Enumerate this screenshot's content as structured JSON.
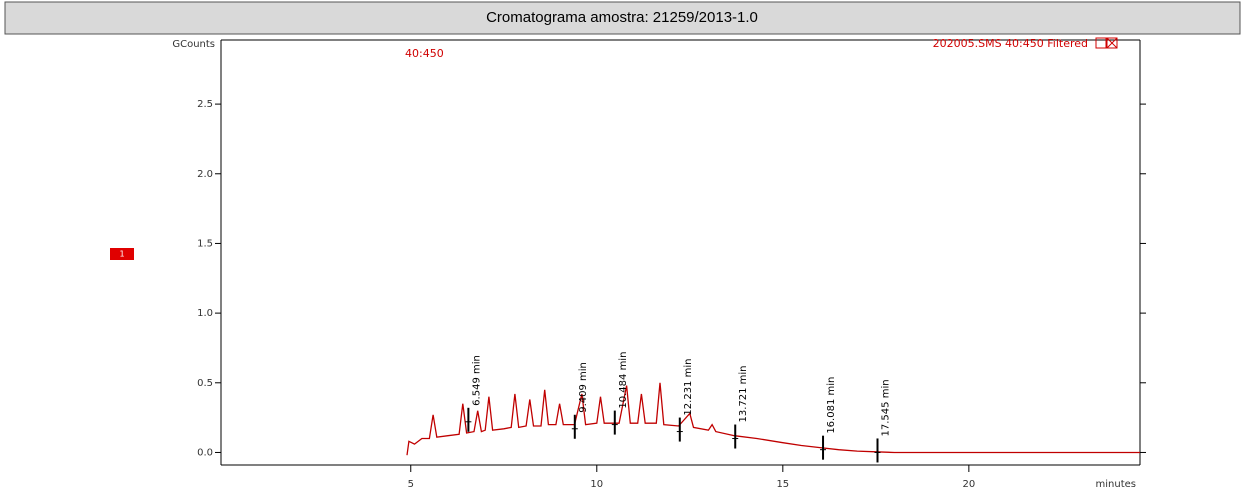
{
  "chart_data": {
    "type": "line",
    "title": "Cromatograma amostra: 21259/2013-1.0",
    "y_label": "GCounts",
    "x_label": "minutes",
    "annotation_left": "40:450",
    "annotation_right": "202005.SMS 40:450 Filtered",
    "trace_label": "1",
    "xlim": [
      -0.1,
      24.6
    ],
    "ylim": [
      -0.09,
      2.96
    ],
    "xticks": [
      5,
      10,
      15,
      20
    ],
    "yticks": [
      {
        "value": 0,
        "label": "0.0"
      },
      0.5,
      {
        "value": 1,
        "label": "1.0"
      },
      1.5,
      {
        "value": 2,
        "label": "2.0"
      },
      2.5
    ],
    "series": [
      {
        "color": "#c00000",
        "x": [
          4.9,
          4.95,
          5.1,
          5.3,
          5.5,
          5.6,
          5.7,
          6.0,
          6.3,
          6.4,
          6.5,
          6.7,
          6.8,
          6.9,
          7.0,
          7.1,
          7.2,
          7.5,
          7.7,
          7.8,
          7.9,
          8.1,
          8.2,
          8.3,
          8.5,
          8.6,
          8.7,
          8.9,
          9.0,
          9.1,
          9.4,
          9.6,
          9.7,
          10.0,
          10.1,
          10.2,
          10.6,
          10.8,
          10.9,
          11.1,
          11.2,
          11.3,
          11.6,
          11.7,
          11.8,
          12.2,
          12.5,
          12.6,
          13.0,
          13.1,
          13.2,
          13.7,
          14.3,
          15.0,
          15.5,
          16.0,
          16.5,
          17.0,
          17.5,
          18.0,
          19.0,
          20.0,
          22.0,
          24.6
        ],
        "values": [
          -0.02,
          0.08,
          0.06,
          0.1,
          0.1,
          0.27,
          0.11,
          0.12,
          0.13,
          0.35,
          0.14,
          0.15,
          0.3,
          0.15,
          0.16,
          0.4,
          0.16,
          0.17,
          0.18,
          0.42,
          0.18,
          0.19,
          0.38,
          0.19,
          0.19,
          0.45,
          0.2,
          0.2,
          0.35,
          0.2,
          0.2,
          0.42,
          0.2,
          0.21,
          0.4,
          0.21,
          0.21,
          0.48,
          0.21,
          0.21,
          0.42,
          0.21,
          0.21,
          0.5,
          0.2,
          0.19,
          0.28,
          0.18,
          0.16,
          0.2,
          0.15,
          0.12,
          0.1,
          0.07,
          0.05,
          0.035,
          0.02,
          0.01,
          0.005,
          0.0,
          0.0,
          0.0,
          0.0,
          0.0
        ]
      }
    ],
    "peaks": [
      {
        "label": "6.549 min",
        "x": 6.549,
        "y": 0.22
      },
      {
        "label": "9.409 min",
        "x": 9.409,
        "y": 0.17
      },
      {
        "label": "10.484 min",
        "x": 10.484,
        "y": 0.2
      },
      {
        "label": "12.231 min",
        "x": 12.231,
        "y": 0.15
      },
      {
        "label": "13.721 min",
        "x": 13.721,
        "y": 0.1
      },
      {
        "label": "16.081 min",
        "x": 16.081,
        "y": 0.02
      },
      {
        "label": "17.545 min",
        "x": 17.545,
        "y": 0.0
      }
    ]
  }
}
